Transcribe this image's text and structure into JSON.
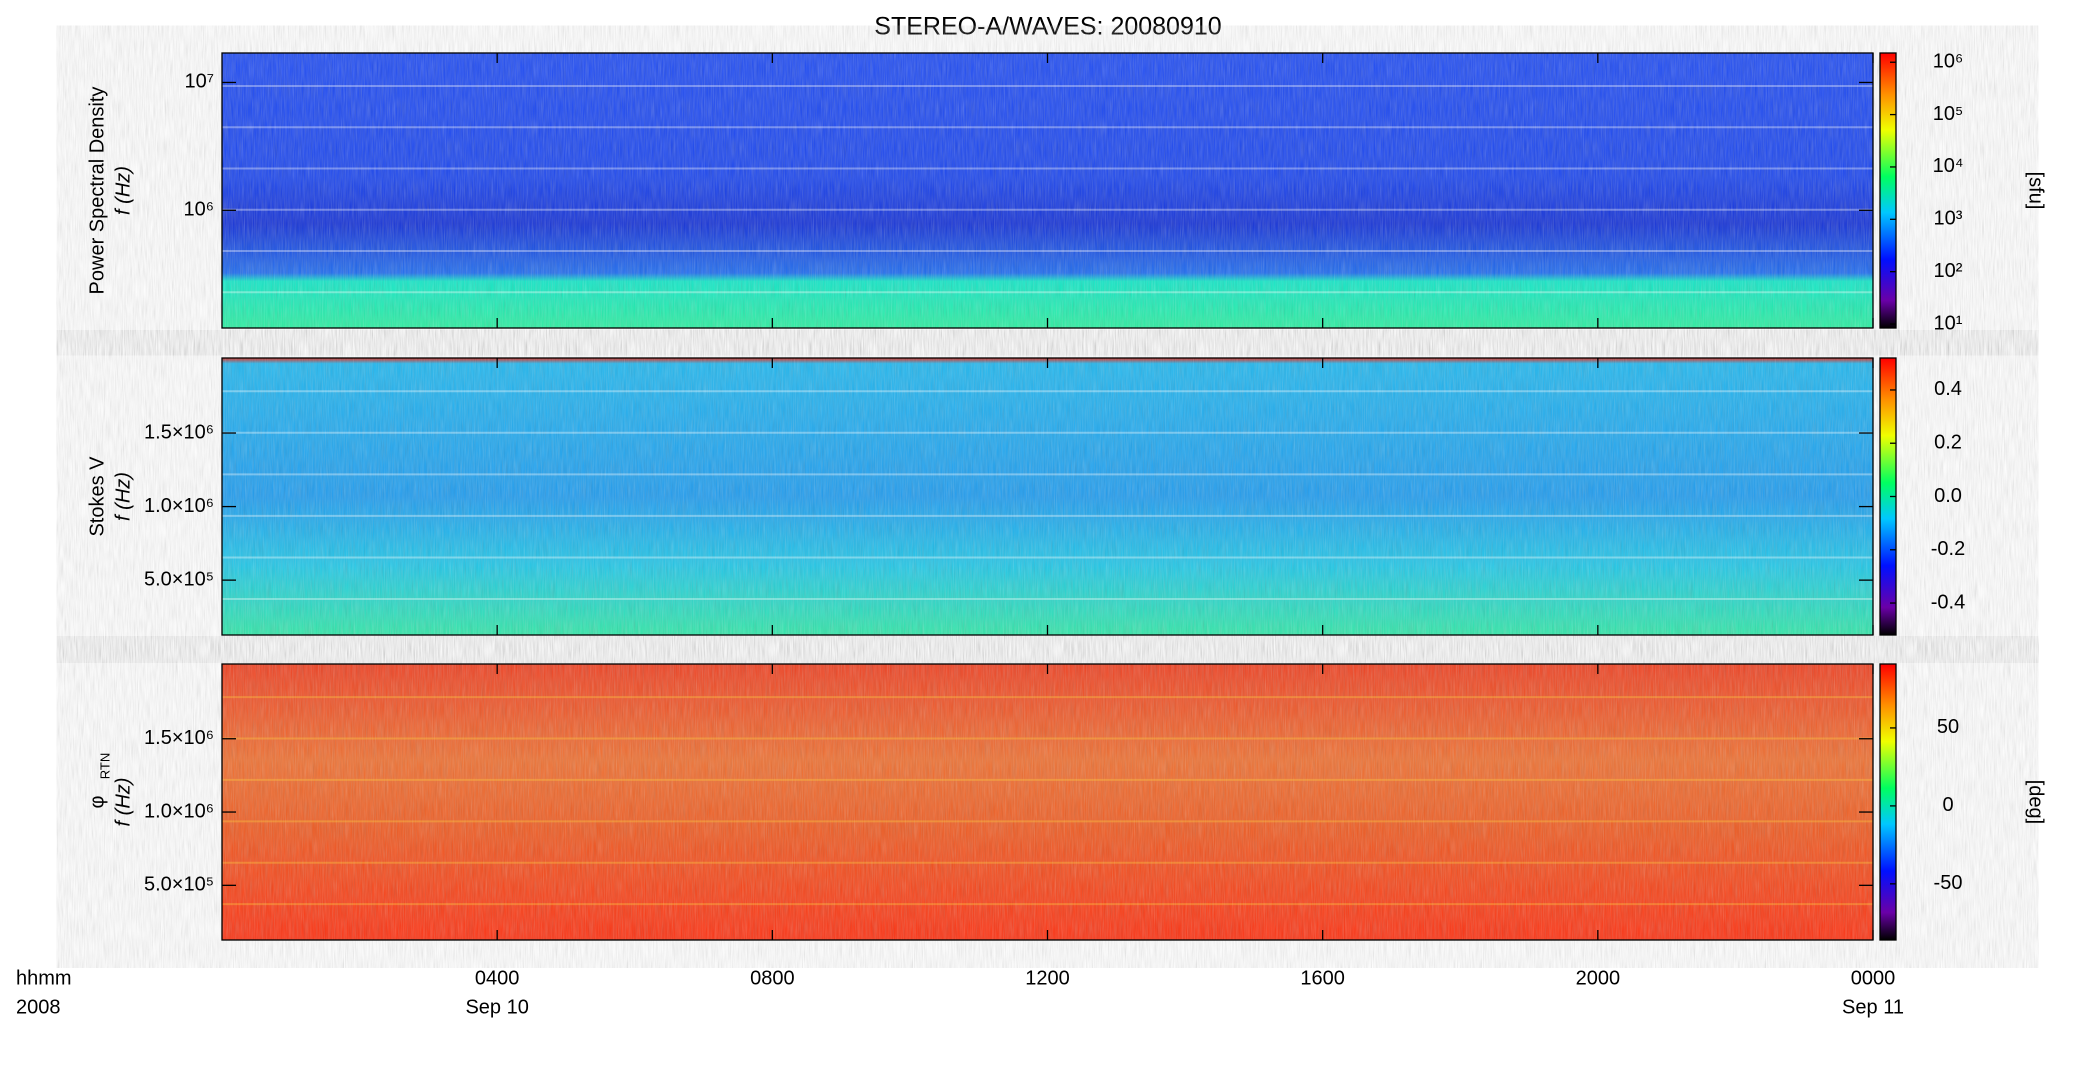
{
  "chart_data": [
    {
      "type": "heatmap",
      "title": "STEREO-A/WAVES: 20080910",
      "ylabel": [
        "Power Spectral Density",
        "f (Hz)"
      ],
      "ylog": true,
      "ylim": [
        120000,
        17000000
      ],
      "yticks": [
        {
          "value": 1000000,
          "label": "10⁶"
        },
        {
          "value": 10000000,
          "label": "10⁷"
        }
      ],
      "clog": true,
      "clim": [
        8.4,
        1500000
      ],
      "cticks": [
        {
          "value": 10,
          "label": "10¹"
        },
        {
          "value": 100,
          "label": "10²"
        },
        {
          "value": 1000,
          "label": "10³"
        },
        {
          "value": 10000,
          "label": "10⁴"
        },
        {
          "value": 100000,
          "label": "10⁵"
        },
        {
          "value": 1000000,
          "label": "10⁶"
        }
      ],
      "clabel": "[sfu]"
    },
    {
      "type": "heatmap",
      "ylabel": [
        "Stokes V",
        "f (Hz)"
      ],
      "ylog": false,
      "ylim": [
        127000,
        2010000
      ],
      "yticks": [
        {
          "value": 500000,
          "label": "5.0×10⁵"
        },
        {
          "value": 1000000,
          "label": "1.0×10⁶"
        },
        {
          "value": 1500000,
          "label": "1.5×10⁶"
        }
      ],
      "clog": false,
      "clim": [
        -0.52,
        0.52
      ],
      "cticks": [
        {
          "value": -0.4,
          "label": "-0.4"
        },
        {
          "value": -0.2,
          "label": "-0.2"
        },
        {
          "value": 0,
          "label": "0.0"
        },
        {
          "value": 0.2,
          "label": "0.2"
        },
        {
          "value": 0.4,
          "label": "0.4"
        }
      ]
    },
    {
      "type": "heatmap",
      "ylabel": [
        "φ",
        "f (Hz)"
      ],
      "ylabel_sub": "RTN",
      "ylog": false,
      "ylim": [
        127000,
        2010000
      ],
      "yticks": [
        {
          "value": 500000,
          "label": "5.0×10⁵"
        },
        {
          "value": 1000000,
          "label": "1.0×10⁶"
        },
        {
          "value": 1500000,
          "label": "1.5×10⁶"
        }
      ],
      "clog": false,
      "clim": [
        -86,
        91
      ],
      "cticks": [
        -50,
        0,
        50
      ],
      "clabel": "[deg]",
      "xlim": [
        0,
        24
      ],
      "xticks": [
        {
          "value": 4,
          "label": "0400"
        },
        {
          "value": 8,
          "label": "0800"
        },
        {
          "value": 12,
          "label": "1200"
        },
        {
          "value": 16,
          "label": "1600"
        },
        {
          "value": 20,
          "label": "2000"
        },
        {
          "value": 24,
          "label": "0000"
        }
      ],
      "xdates": [
        {
          "value": 4,
          "label": "Sep 10"
        },
        {
          "value": 24,
          "label": "Sep 11"
        }
      ],
      "xcorner": [
        "hhmm",
        "2008"
      ]
    }
  ]
}
